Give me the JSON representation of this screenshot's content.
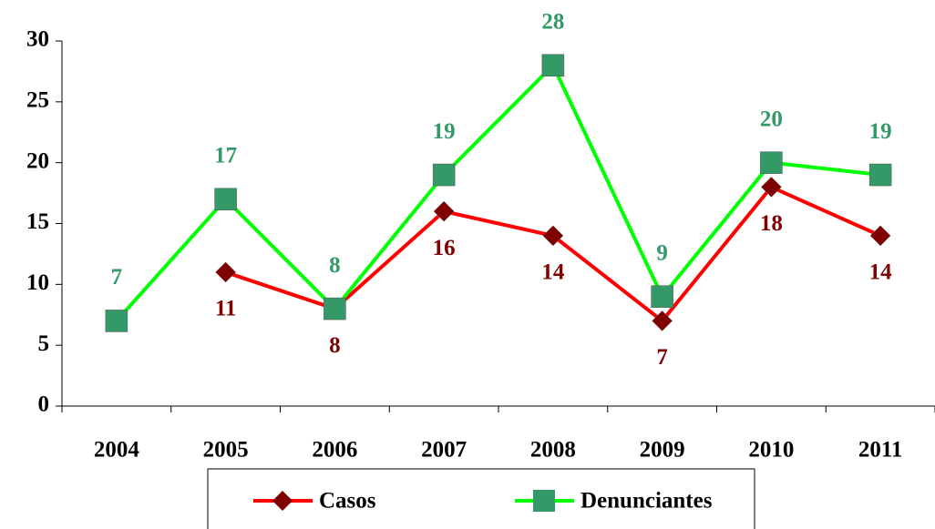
{
  "chart_data": {
    "type": "line",
    "categories": [
      "2004",
      "2005",
      "2006",
      "2007",
      "2008",
      "2009",
      "2010",
      "2011"
    ],
    "series": [
      {
        "name": "Casos",
        "color": "#ff0000",
        "marker_color": "#800000",
        "label_color": "#800000",
        "marker": "diamond",
        "values": [
          null,
          11,
          8,
          16,
          14,
          7,
          18,
          14
        ]
      },
      {
        "name": "Denunciantes",
        "color": "#00ff00",
        "marker_color": "#339966",
        "label_color": "#339966",
        "marker": "square",
        "values": [
          7,
          17,
          8,
          19,
          28,
          9,
          20,
          19
        ]
      }
    ],
    "ylim": [
      0,
      30
    ],
    "yticks": [
      0,
      5,
      10,
      15,
      20,
      25,
      30
    ],
    "grid": false,
    "legend": "bottom"
  }
}
